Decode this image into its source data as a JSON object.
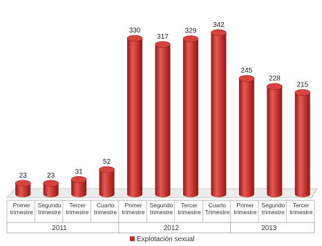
{
  "chart_data": {
    "type": "bar",
    "categories": [
      "Primer trimestre",
      "Segundo trimestre",
      "Tercer trimestre",
      "Cuarto trimestre",
      "Primer trimestre",
      "Segundo trimestre",
      "Tercer trimestre",
      "Cuarto Trimestre",
      "Primer trimestre",
      "Segundo trimestre",
      "Tercer trimestre"
    ],
    "category_lines": [
      [
        "Primer",
        "trimestre"
      ],
      [
        "Segundo",
        "trimestre"
      ],
      [
        "Tercer",
        "trimestre"
      ],
      [
        "Cuarto",
        "trimestre"
      ],
      [
        "Primer",
        "trimestre"
      ],
      [
        "Segundo",
        "trimestre"
      ],
      [
        "Tercer",
        "trimestre"
      ],
      [
        "Cuarto",
        "Trimestre"
      ],
      [
        "Primer",
        "trimestre"
      ],
      [
        "Segundo",
        "trimestre"
      ],
      [
        "Tercer",
        "trimestre"
      ]
    ],
    "groups": [
      {
        "label": "2011",
        "count": 4
      },
      {
        "label": "2012",
        "count": 4
      },
      {
        "label": "2013",
        "count": 3
      }
    ],
    "series": [
      {
        "name": "Explotación sexual",
        "values": [
          23,
          23,
          31,
          52,
          330,
          317,
          329,
          342,
          245,
          228,
          215
        ]
      }
    ],
    "ylim": [
      0,
      360
    ],
    "grid": false,
    "legend_position": "bottom",
    "colors": {
      "bar": "#c0312c",
      "bar_light": "#e35a55",
      "bar_dark": "#8e1b18",
      "bar_top": "#d9423d"
    }
  }
}
